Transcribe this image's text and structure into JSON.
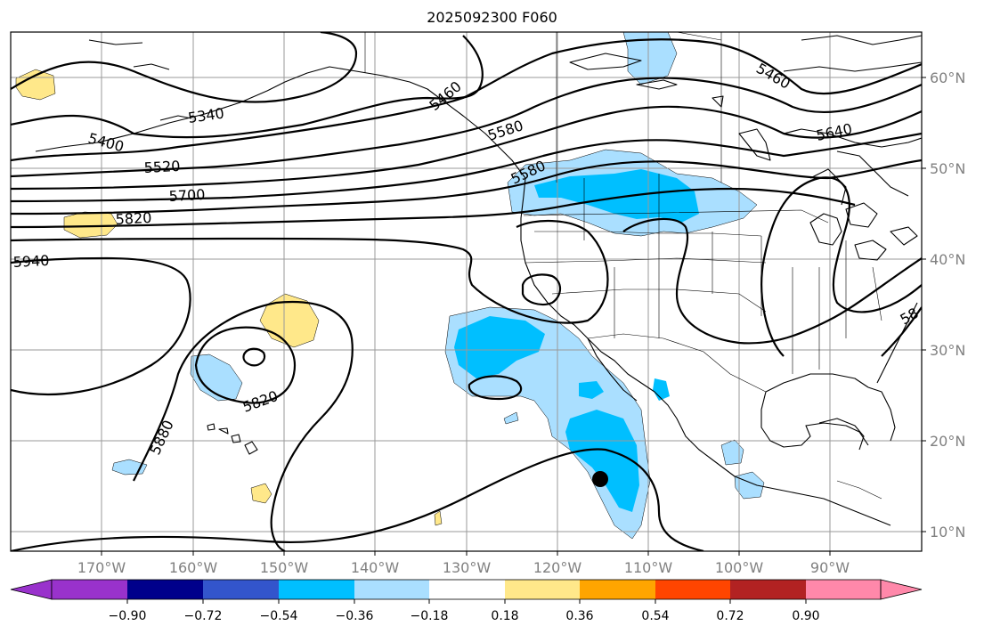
{
  "title": "2025092300 F060",
  "map": {
    "lon_labels": [
      "170°W",
      "160°W",
      "150°W",
      "140°W",
      "130°W",
      "120°W",
      "110°W",
      "100°W",
      "90°W"
    ],
    "lat_labels": [
      "60°N",
      "50°N",
      "40°N",
      "30°N",
      "20°N",
      "10°N"
    ],
    "contour_labels": [
      "5340",
      "5400",
      "5460",
      "5460",
      "5520",
      "5580",
      "5580",
      "5640",
      "5700",
      "5820",
      "5820",
      "5880",
      "5940",
      "58"
    ],
    "storm_marker": "hurricane-center-marker"
  },
  "colorbar": {
    "ticks": [
      "−0.90",
      "−0.72",
      "−0.54",
      "−0.36",
      "−0.18",
      "0.18",
      "0.36",
      "0.54",
      "0.72",
      "0.90"
    ],
    "colors": [
      "#9932cc",
      "#00008b",
      "#3355cc",
      "#00bfff",
      "#aadfff",
      "#ffffff",
      "#ffe88a",
      "#ffa500",
      "#ff4500",
      "#b22222",
      "#ff88aa"
    ],
    "extend": "both"
  },
  "colors": {
    "neg_light": "#aadfff",
    "neg_mid": "#00bfff",
    "pos_light": "#ffe88a"
  }
}
